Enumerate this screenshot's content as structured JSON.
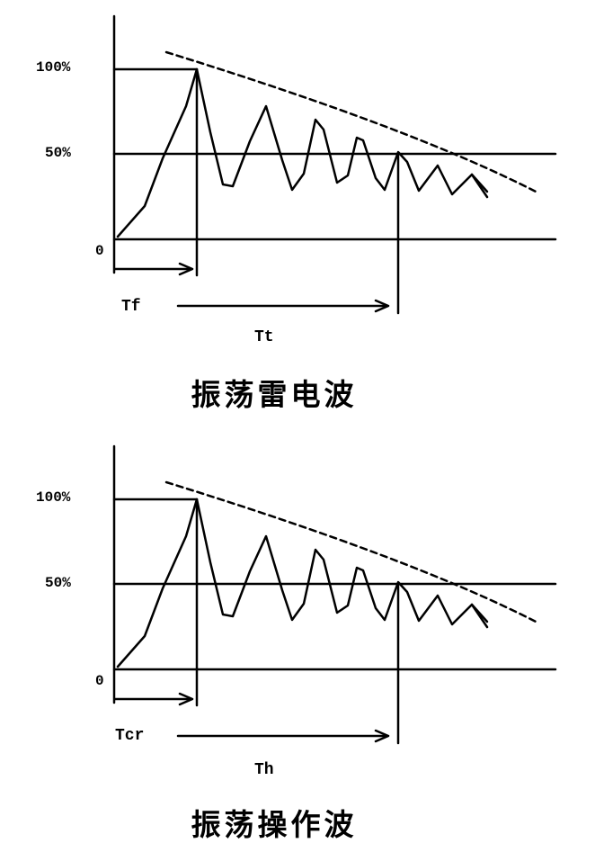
{
  "diagrams": [
    {
      "labels": {
        "y100": "100%",
        "y50": "50%",
        "origin": "0",
        "front_time": "Tf",
        "total_time": "Tt"
      },
      "caption": "振荡雷电波"
    },
    {
      "labels": {
        "y100": "100%",
        "y50": "50%",
        "origin": "0",
        "front_time": "Tcr",
        "total_time": "Th"
      },
      "caption": "振荡操作波"
    }
  ],
  "colors": {
    "line": "#000000",
    "background": "#ffffff"
  }
}
